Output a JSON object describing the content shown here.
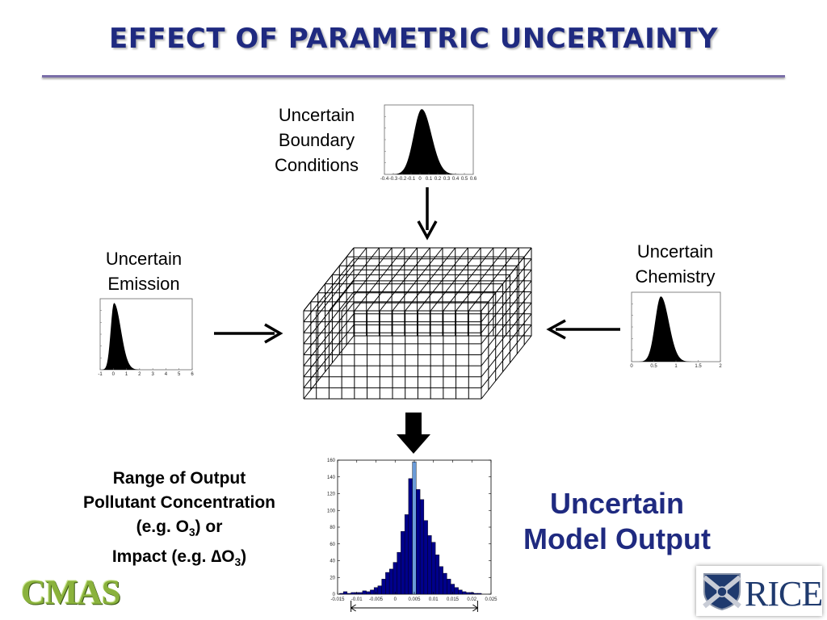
{
  "title": "EFFECT OF PARAMETRIC UNCERTAINTY",
  "boundary": {
    "line1": "Uncertain",
    "line2": "Boundary",
    "line3": "Conditions"
  },
  "emission": {
    "line1": "Uncertain",
    "line2": "Emission"
  },
  "chemistry": {
    "line1": "Uncertain",
    "line2": "Chemistry"
  },
  "range": {
    "line1": "Range of Output",
    "line2": "Pollutant Concentration",
    "line3_pre": "(e.g. O",
    "line3_sub": "3",
    "line3_post": ") or",
    "line4_pre": "Impact (e.g. ",
    "line4_delta": "∆",
    "line4_o": "O",
    "line4_sub": "3",
    "line4_post": ")"
  },
  "output": {
    "line1": "Uncertain",
    "line2": "Model Output"
  },
  "logos": {
    "cmas": "CMAS",
    "rice": "RICE"
  },
  "colors": {
    "title": "#1f2a80",
    "bar_fill": "#00008b",
    "highlight_bar": "#6a9bd8",
    "rule": "#7a6ea8"
  },
  "chart_data": {
    "type": "bar",
    "x_ticks": [
      "-0.015",
      "-0.01",
      "-0.005",
      "0",
      "0.005",
      "0.01",
      "0.015",
      "0.02",
      "0.025"
    ],
    "y_ticks": [
      "0",
      "20",
      "40",
      "60",
      "80",
      "100",
      "120",
      "140",
      "160"
    ],
    "xlim": [
      -0.015,
      0.025
    ],
    "ylim": [
      0,
      160
    ],
    "bin_width": 0.001,
    "bin_starts": [
      -0.0145,
      -0.0135,
      -0.0125,
      -0.0115,
      -0.0105,
      -0.0095,
      -0.0085,
      -0.0075,
      -0.0065,
      -0.0055,
      -0.0045,
      -0.0035,
      -0.0025,
      -0.0015,
      -0.0005,
      0.0005,
      0.0015,
      0.0025,
      0.0035,
      0.0045,
      0.0055,
      0.0065,
      0.0075,
      0.0085,
      0.0095,
      0.0105,
      0.0115,
      0.0125,
      0.0135,
      0.0145,
      0.0155,
      0.0165,
      0.0175,
      0.0185,
      0.0195,
      0.0205,
      0.0215
    ],
    "values": [
      1,
      3,
      1,
      2,
      2,
      2,
      4,
      3,
      5,
      8,
      10,
      18,
      26,
      30,
      38,
      50,
      75,
      95,
      138,
      158,
      125,
      113,
      88,
      70,
      62,
      47,
      33,
      25,
      18,
      12,
      8,
      5,
      3,
      2,
      2,
      1,
      1
    ],
    "highlight_index": 19
  },
  "small_hist_ticks": {
    "boundary": [
      "-0.4",
      "-0.3",
      "-0.2",
      "-0.1",
      "0",
      "0.1",
      "0.2",
      "0.3",
      "0.4",
      "0.5",
      "0.6"
    ],
    "emission": [
      "-1",
      "0",
      "1",
      "2",
      "3",
      "4",
      "5",
      "6"
    ],
    "chemistry": [
      "0",
      "0.5",
      "1",
      "1.5",
      "2"
    ]
  }
}
